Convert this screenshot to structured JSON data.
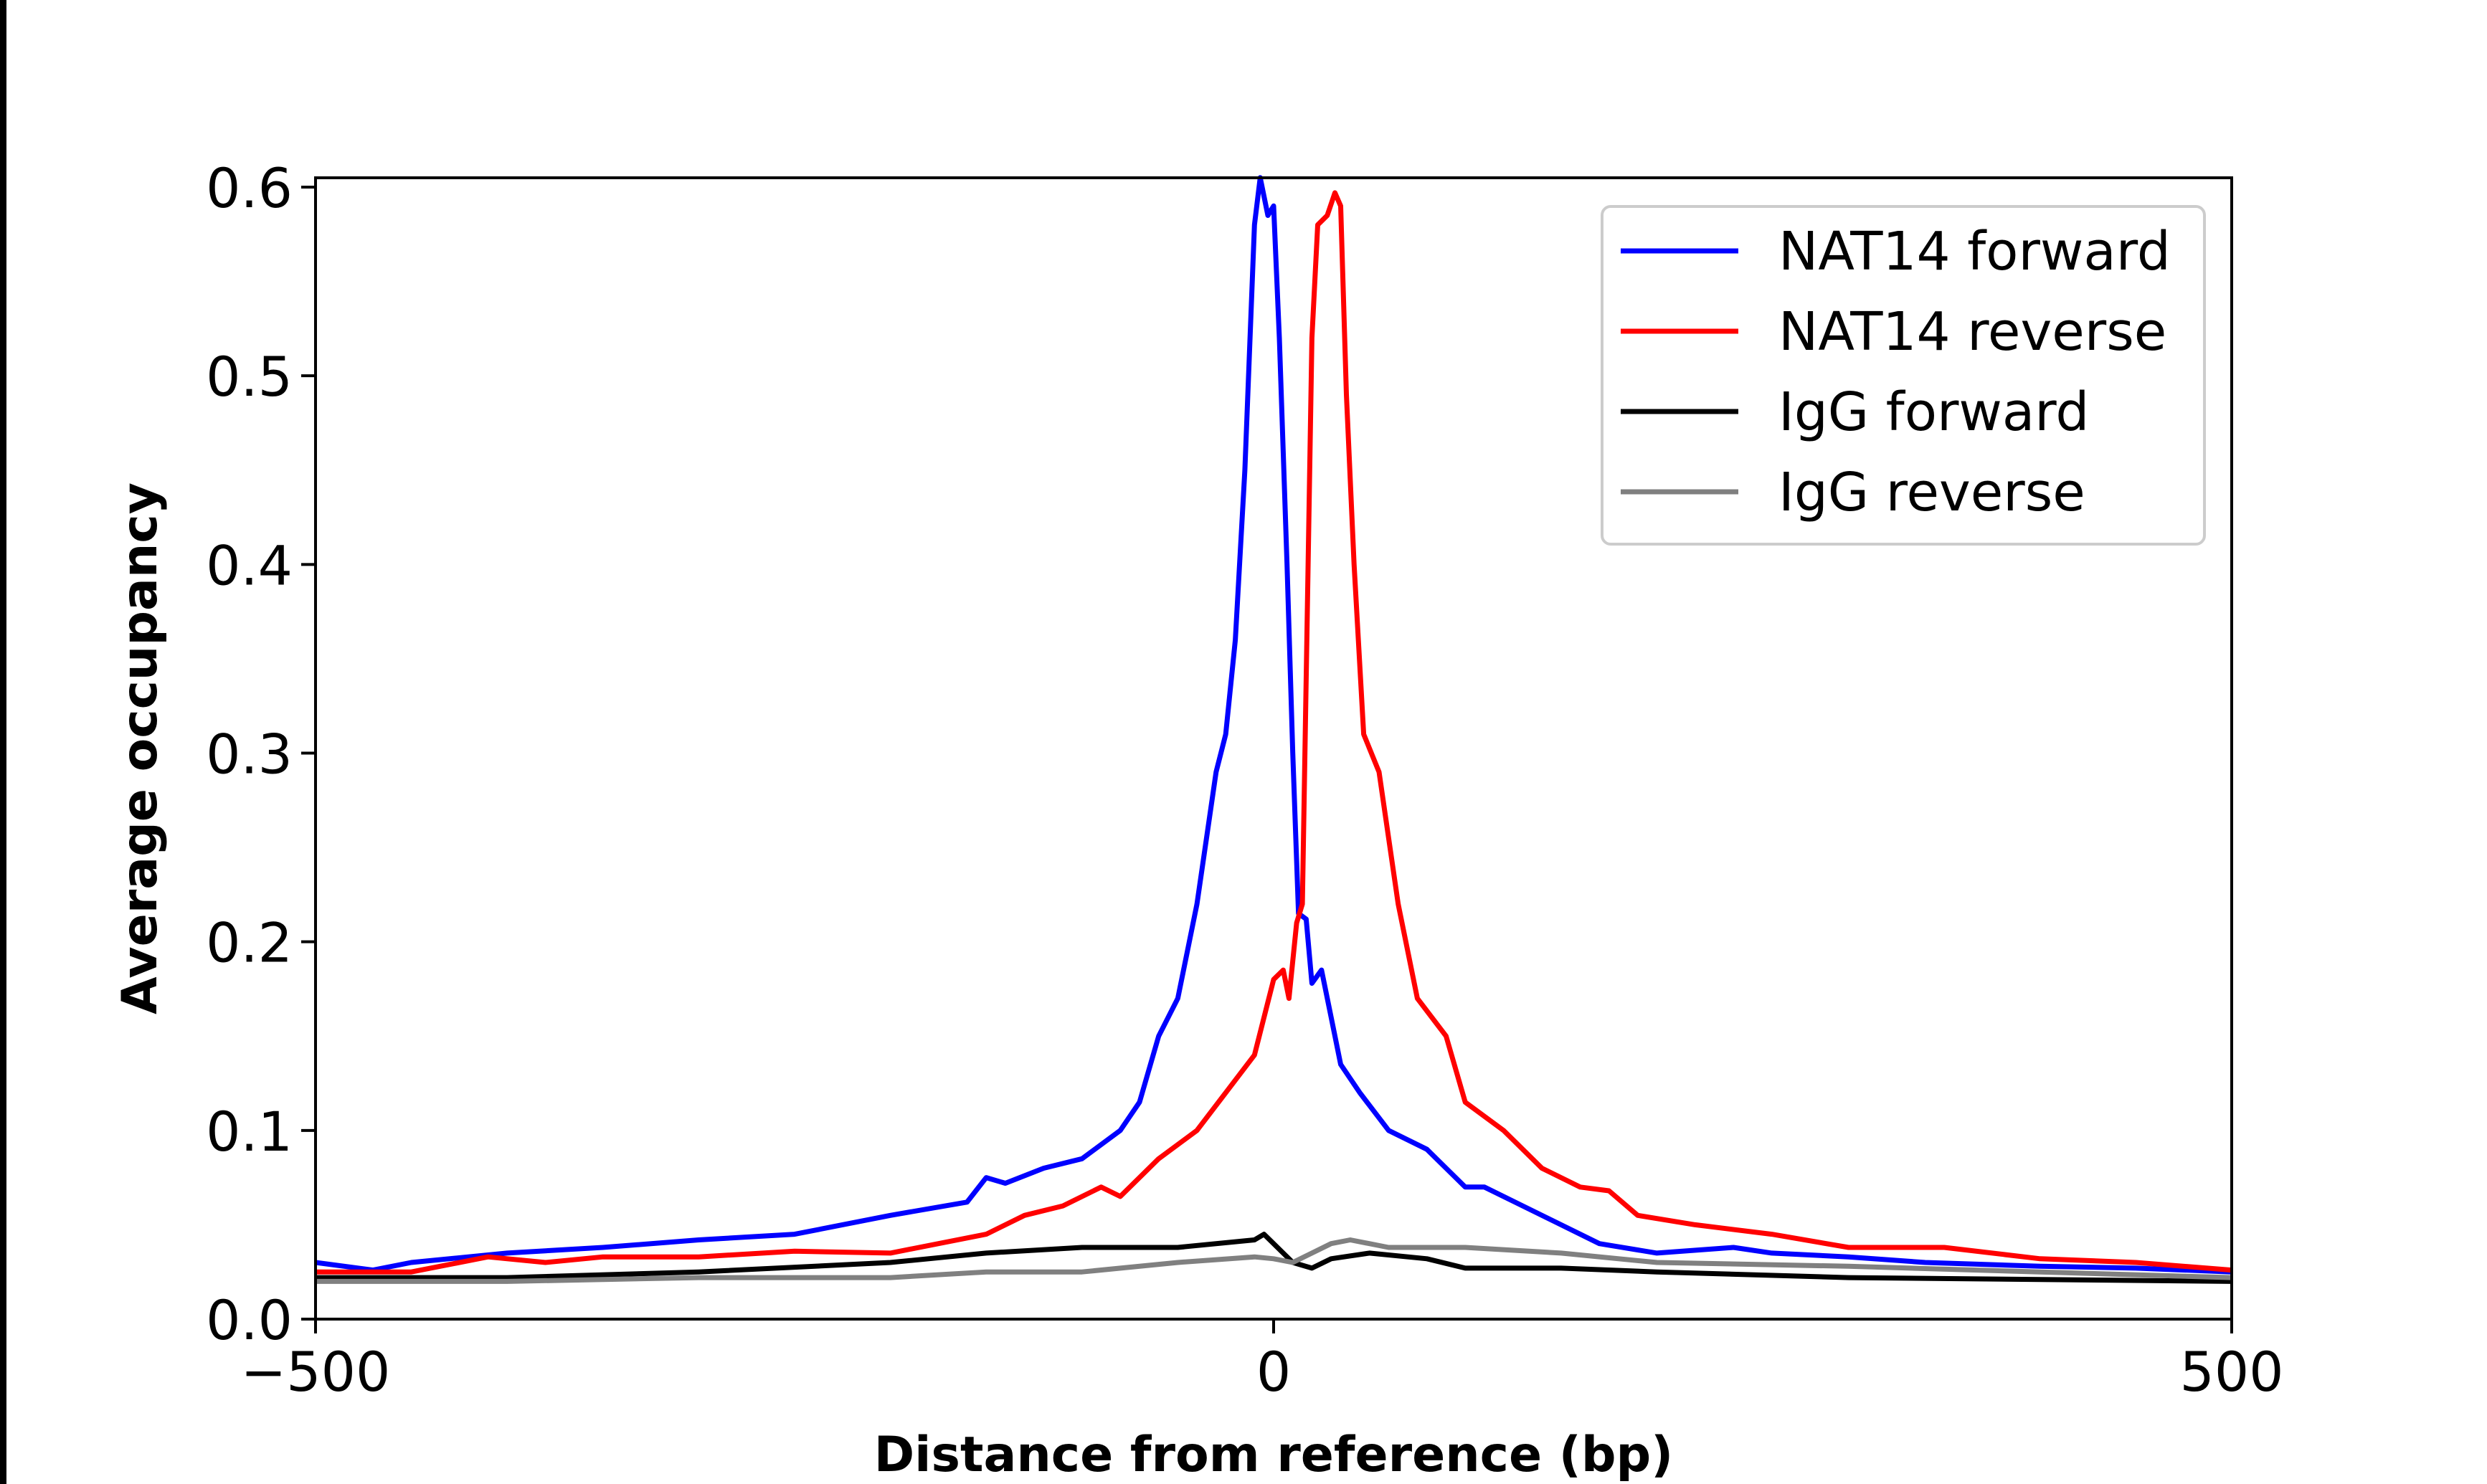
{
  "chart_data": {
    "type": "line",
    "title": "",
    "xlabel": "Distance from reference (bp)",
    "ylabel": "Average occupancy",
    "xlim": [
      -500,
      500
    ],
    "ylim": [
      0,
      0.605
    ],
    "xticks": [
      -500,
      0,
      500
    ],
    "xtick_labels": [
      "−500",
      "0",
      "500"
    ],
    "yticks": [
      0.0,
      0.1,
      0.2,
      0.3,
      0.4,
      0.5,
      0.6
    ],
    "ytick_labels": [
      "0.0",
      "0.1",
      "0.2",
      "0.3",
      "0.4",
      "0.5",
      "0.6"
    ],
    "grid": false,
    "legend_position": "top-right",
    "series": [
      {
        "name": "NAT14 forward",
        "color": "#0000ff",
        "x": [
          -500,
          -470,
          -450,
          -400,
          -350,
          -300,
          -250,
          -200,
          -160,
          -150,
          -140,
          -120,
          -100,
          -80,
          -70,
          -60,
          -50,
          -40,
          -30,
          -25,
          -20,
          -15,
          -10,
          -7,
          -3,
          0,
          3,
          7,
          10,
          13,
          17,
          20,
          25,
          30,
          35,
          45,
          60,
          80,
          100,
          110,
          130,
          150,
          170,
          200,
          240,
          260,
          300,
          340,
          400,
          450,
          500
        ],
        "y": [
          0.03,
          0.026,
          0.03,
          0.035,
          0.038,
          0.042,
          0.045,
          0.055,
          0.062,
          0.075,
          0.072,
          0.08,
          0.085,
          0.1,
          0.115,
          0.15,
          0.17,
          0.22,
          0.29,
          0.31,
          0.36,
          0.45,
          0.58,
          0.605,
          0.585,
          0.59,
          0.52,
          0.4,
          0.3,
          0.215,
          0.212,
          0.178,
          0.185,
          0.16,
          0.135,
          0.12,
          0.1,
          0.09,
          0.07,
          0.07,
          0.06,
          0.05,
          0.04,
          0.035,
          0.038,
          0.035,
          0.033,
          0.03,
          0.028,
          0.027,
          0.025
        ]
      },
      {
        "name": "NAT14 reverse",
        "color": "#ff0000",
        "x": [
          -500,
          -450,
          -410,
          -380,
          -350,
          -300,
          -250,
          -200,
          -150,
          -130,
          -110,
          -90,
          -80,
          -60,
          -40,
          -25,
          -10,
          0,
          5,
          8,
          12,
          15,
          18,
          20,
          23,
          28,
          32,
          35,
          38,
          42,
          47,
          55,
          65,
          75,
          90,
          100,
          120,
          140,
          160,
          175,
          190,
          220,
          260,
          300,
          350,
          400,
          450,
          500
        ],
        "y": [
          0.025,
          0.025,
          0.033,
          0.03,
          0.033,
          0.033,
          0.036,
          0.035,
          0.045,
          0.055,
          0.06,
          0.07,
          0.065,
          0.085,
          0.1,
          0.12,
          0.14,
          0.18,
          0.185,
          0.17,
          0.21,
          0.22,
          0.4,
          0.52,
          0.58,
          0.585,
          0.597,
          0.59,
          0.49,
          0.4,
          0.31,
          0.29,
          0.22,
          0.17,
          0.15,
          0.115,
          0.1,
          0.08,
          0.07,
          0.068,
          0.055,
          0.05,
          0.045,
          0.038,
          0.038,
          0.032,
          0.03,
          0.026
        ]
      },
      {
        "name": "IgG forward",
        "color": "#000000",
        "x": [
          -500,
          -400,
          -300,
          -200,
          -150,
          -100,
          -50,
          -10,
          -5,
          0,
          10,
          20,
          30,
          50,
          80,
          100,
          150,
          200,
          300,
          400,
          500
        ],
        "y": [
          0.022,
          0.022,
          0.025,
          0.03,
          0.035,
          0.038,
          0.038,
          0.042,
          0.045,
          0.04,
          0.03,
          0.027,
          0.032,
          0.035,
          0.032,
          0.027,
          0.027,
          0.025,
          0.022,
          0.021,
          0.02
        ]
      },
      {
        "name": "IgG reverse",
        "color": "#808080",
        "x": [
          -500,
          -400,
          -300,
          -200,
          -150,
          -100,
          -50,
          -10,
          0,
          10,
          20,
          30,
          40,
          60,
          100,
          150,
          200,
          300,
          400,
          500
        ],
        "y": [
          0.02,
          0.02,
          0.022,
          0.022,
          0.025,
          0.025,
          0.03,
          0.033,
          0.032,
          0.03,
          0.035,
          0.04,
          0.042,
          0.038,
          0.038,
          0.035,
          0.03,
          0.028,
          0.025,
          0.022
        ]
      }
    ]
  }
}
